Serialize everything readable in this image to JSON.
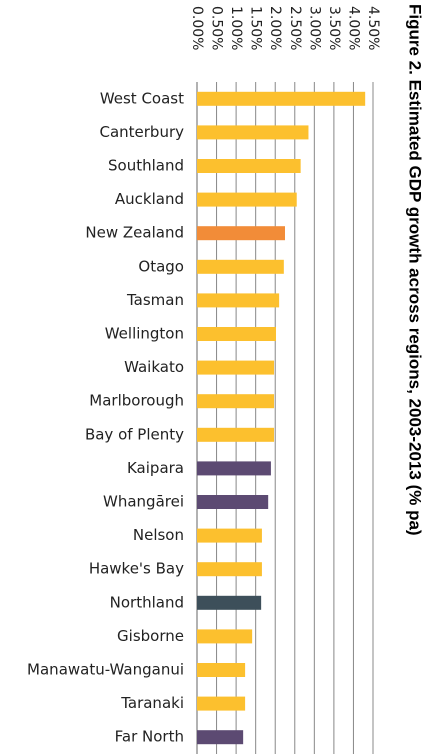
{
  "chart_data": {
    "type": "barh",
    "title": "Figure 2. Estimated GDP growth across regions, 2003-2013 (% pa)",
    "categories": [
      "West Coast",
      "Canterbury",
      "Southland",
      "Auckland",
      "New Zealand",
      "Otago",
      "Tasman",
      "Wellington",
      "Waikato",
      "Marlborough",
      "Bay of Plenty",
      "Kaipara",
      "Whangārei",
      "Nelson",
      "Hawke's Bay",
      "Northland",
      "Gisborne",
      "Manawatu-Wanganui",
      "Taranaki",
      "Far North"
    ],
    "values": [
      4.3,
      2.85,
      2.65,
      2.55,
      2.25,
      2.22,
      2.1,
      2.02,
      1.97,
      1.97,
      1.97,
      1.89,
      1.82,
      1.66,
      1.66,
      1.64,
      1.41,
      1.23,
      1.23,
      1.18
    ],
    "colors": [
      "#fcc02e",
      "#fcc02e",
      "#fcc02e",
      "#fcc02e",
      "#f28c38",
      "#fcc02e",
      "#fcc02e",
      "#fcc02e",
      "#fcc02e",
      "#fcc02e",
      "#fcc02e",
      "#5c4a72",
      "#5c4a72",
      "#fcc02e",
      "#fcc02e",
      "#3d4f5a",
      "#fcc02e",
      "#fcc02e",
      "#fcc02e",
      "#5c4a72"
    ],
    "xlim": [
      0,
      4.5
    ],
    "xticks": [
      {
        "value": 0,
        "label": "0.00%"
      },
      {
        "value": 0.5,
        "label": "0.50%"
      },
      {
        "value": 1,
        "label": "1.00%"
      },
      {
        "value": 1.5,
        "label": "1.50%"
      },
      {
        "value": 2,
        "label": "2.00%"
      },
      {
        "value": 2.5,
        "label": "2.50%"
      },
      {
        "value": 3,
        "label": "3.00%"
      },
      {
        "value": 3.5,
        "label": "3.50%"
      },
      {
        "value": 4,
        "label": "4.00%"
      },
      {
        "value": 4.5,
        "label": "4.50%"
      }
    ],
    "grid": true
  }
}
